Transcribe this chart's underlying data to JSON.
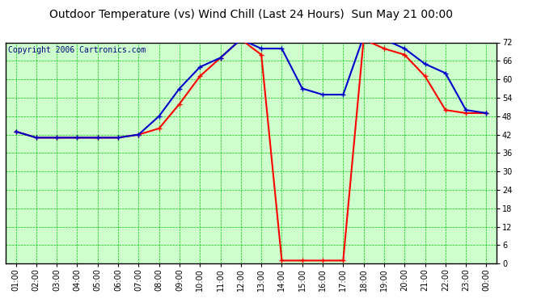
{
  "title": "Outdoor Temperature (vs) Wind Chill (Last 24 Hours)  Sun May 21 00:00",
  "copyright": "Copyright 2006 Cartronics.com",
  "x_labels": [
    "01:00",
    "02:00",
    "03:00",
    "04:00",
    "05:00",
    "06:00",
    "07:00",
    "08:00",
    "09:00",
    "10:00",
    "11:00",
    "12:00",
    "13:00",
    "14:00",
    "15:00",
    "16:00",
    "17:00",
    "18:00",
    "19:00",
    "20:00",
    "21:00",
    "22:00",
    "23:00",
    "00:00"
  ],
  "temp_data": [
    43,
    41,
    41,
    41,
    41,
    41,
    42,
    48,
    57,
    64,
    67,
    73,
    70,
    70,
    57,
    55,
    55,
    74,
    73,
    70,
    65,
    62,
    50,
    49
  ],
  "wind_chill_data": [
    43,
    41,
    41,
    41,
    41,
    41,
    42,
    44,
    52,
    61,
    67,
    73,
    68,
    1,
    1,
    1,
    1,
    73,
    70,
    68,
    61,
    50,
    49,
    49
  ],
  "temp_color": "#0000CC",
  "wind_color": "#FF0000",
  "plot_bg_color": "#CCFFCC",
  "outer_bg_color": "#FFFFFF",
  "grid_major_color": "#00CC00",
  "grid_minor_color": "#00CC00",
  "title_color": "#000000",
  "copyright_color": "#000080",
  "border_color": "#000000",
  "ylim": [
    0.0,
    72.0
  ],
  "ytick_step": 6.0,
  "title_fontsize": 10,
  "tick_fontsize": 7,
  "copyright_fontsize": 7,
  "line_width": 1.5,
  "marker_size": 4
}
